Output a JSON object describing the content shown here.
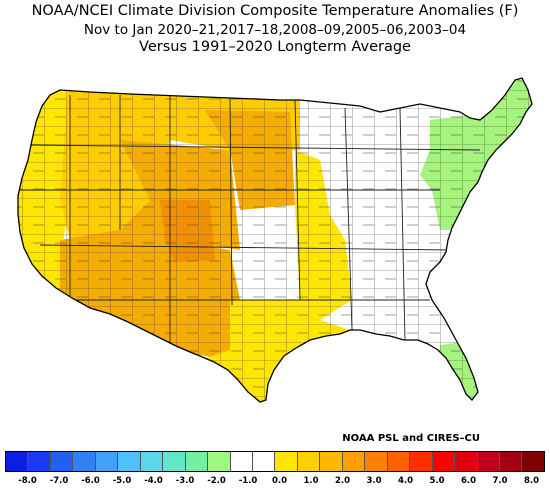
{
  "title": {
    "line1": "NOAA/NCEI Climate Division Composite Temperature Anomalies (F)",
    "line2": "Nov to Jan  2020–21,2017–18,2008–09,2005–06,2003–04",
    "line3": "Versus 1991–2020 Longterm Average"
  },
  "credit": "NOAA PSL and CIRES–CU",
  "colorbar": {
    "colors": [
      "#0a1fe0",
      "#1a3cf0",
      "#2060f5",
      "#3080f8",
      "#40a0fa",
      "#50c0fc",
      "#5ad8e8",
      "#60e8c8",
      "#70f0a0",
      "#a0f880",
      "#ffffff",
      "#ffffff",
      "#ffe600",
      "#ffd000",
      "#ffb800",
      "#ffa000",
      "#ff8000",
      "#ff6000",
      "#ff3000",
      "#ff0000",
      "#e00010",
      "#c00020",
      "#a00010",
      "#800000"
    ],
    "labels": [
      "-8.0",
      "-7.0",
      "-6.0",
      "-5.0",
      "-4.0",
      "-3.0",
      "-2.0",
      "-1.0",
      "0.0",
      "1.0",
      "2.0",
      "3.0",
      "4.0",
      "5.0",
      "6.0",
      "7.0",
      "8.0"
    ]
  },
  "legend_categories": {
    "green": "#a6f47d",
    "yellow": "#ffe600",
    "gold": "#ffcc00",
    "orange": "#f5ac00",
    "darkorange": "#f09000"
  },
  "regions": [
    {
      "name": "west-coast",
      "category": "yellow"
    },
    {
      "name": "great-basin",
      "category": "gold"
    },
    {
      "name": "southwest",
      "category": "orange"
    },
    {
      "name": "central-rockies",
      "category": "orange"
    },
    {
      "name": "colorado-core",
      "category": "darkorange"
    },
    {
      "name": "northern-plains",
      "category": "gold"
    },
    {
      "name": "dakotas-core",
      "category": "orange"
    },
    {
      "name": "texas",
      "category": "yellow"
    },
    {
      "name": "midwest-margin",
      "category": "yellow"
    },
    {
      "name": "northeast",
      "category": "green"
    },
    {
      "name": "florida",
      "category": "green"
    }
  ]
}
